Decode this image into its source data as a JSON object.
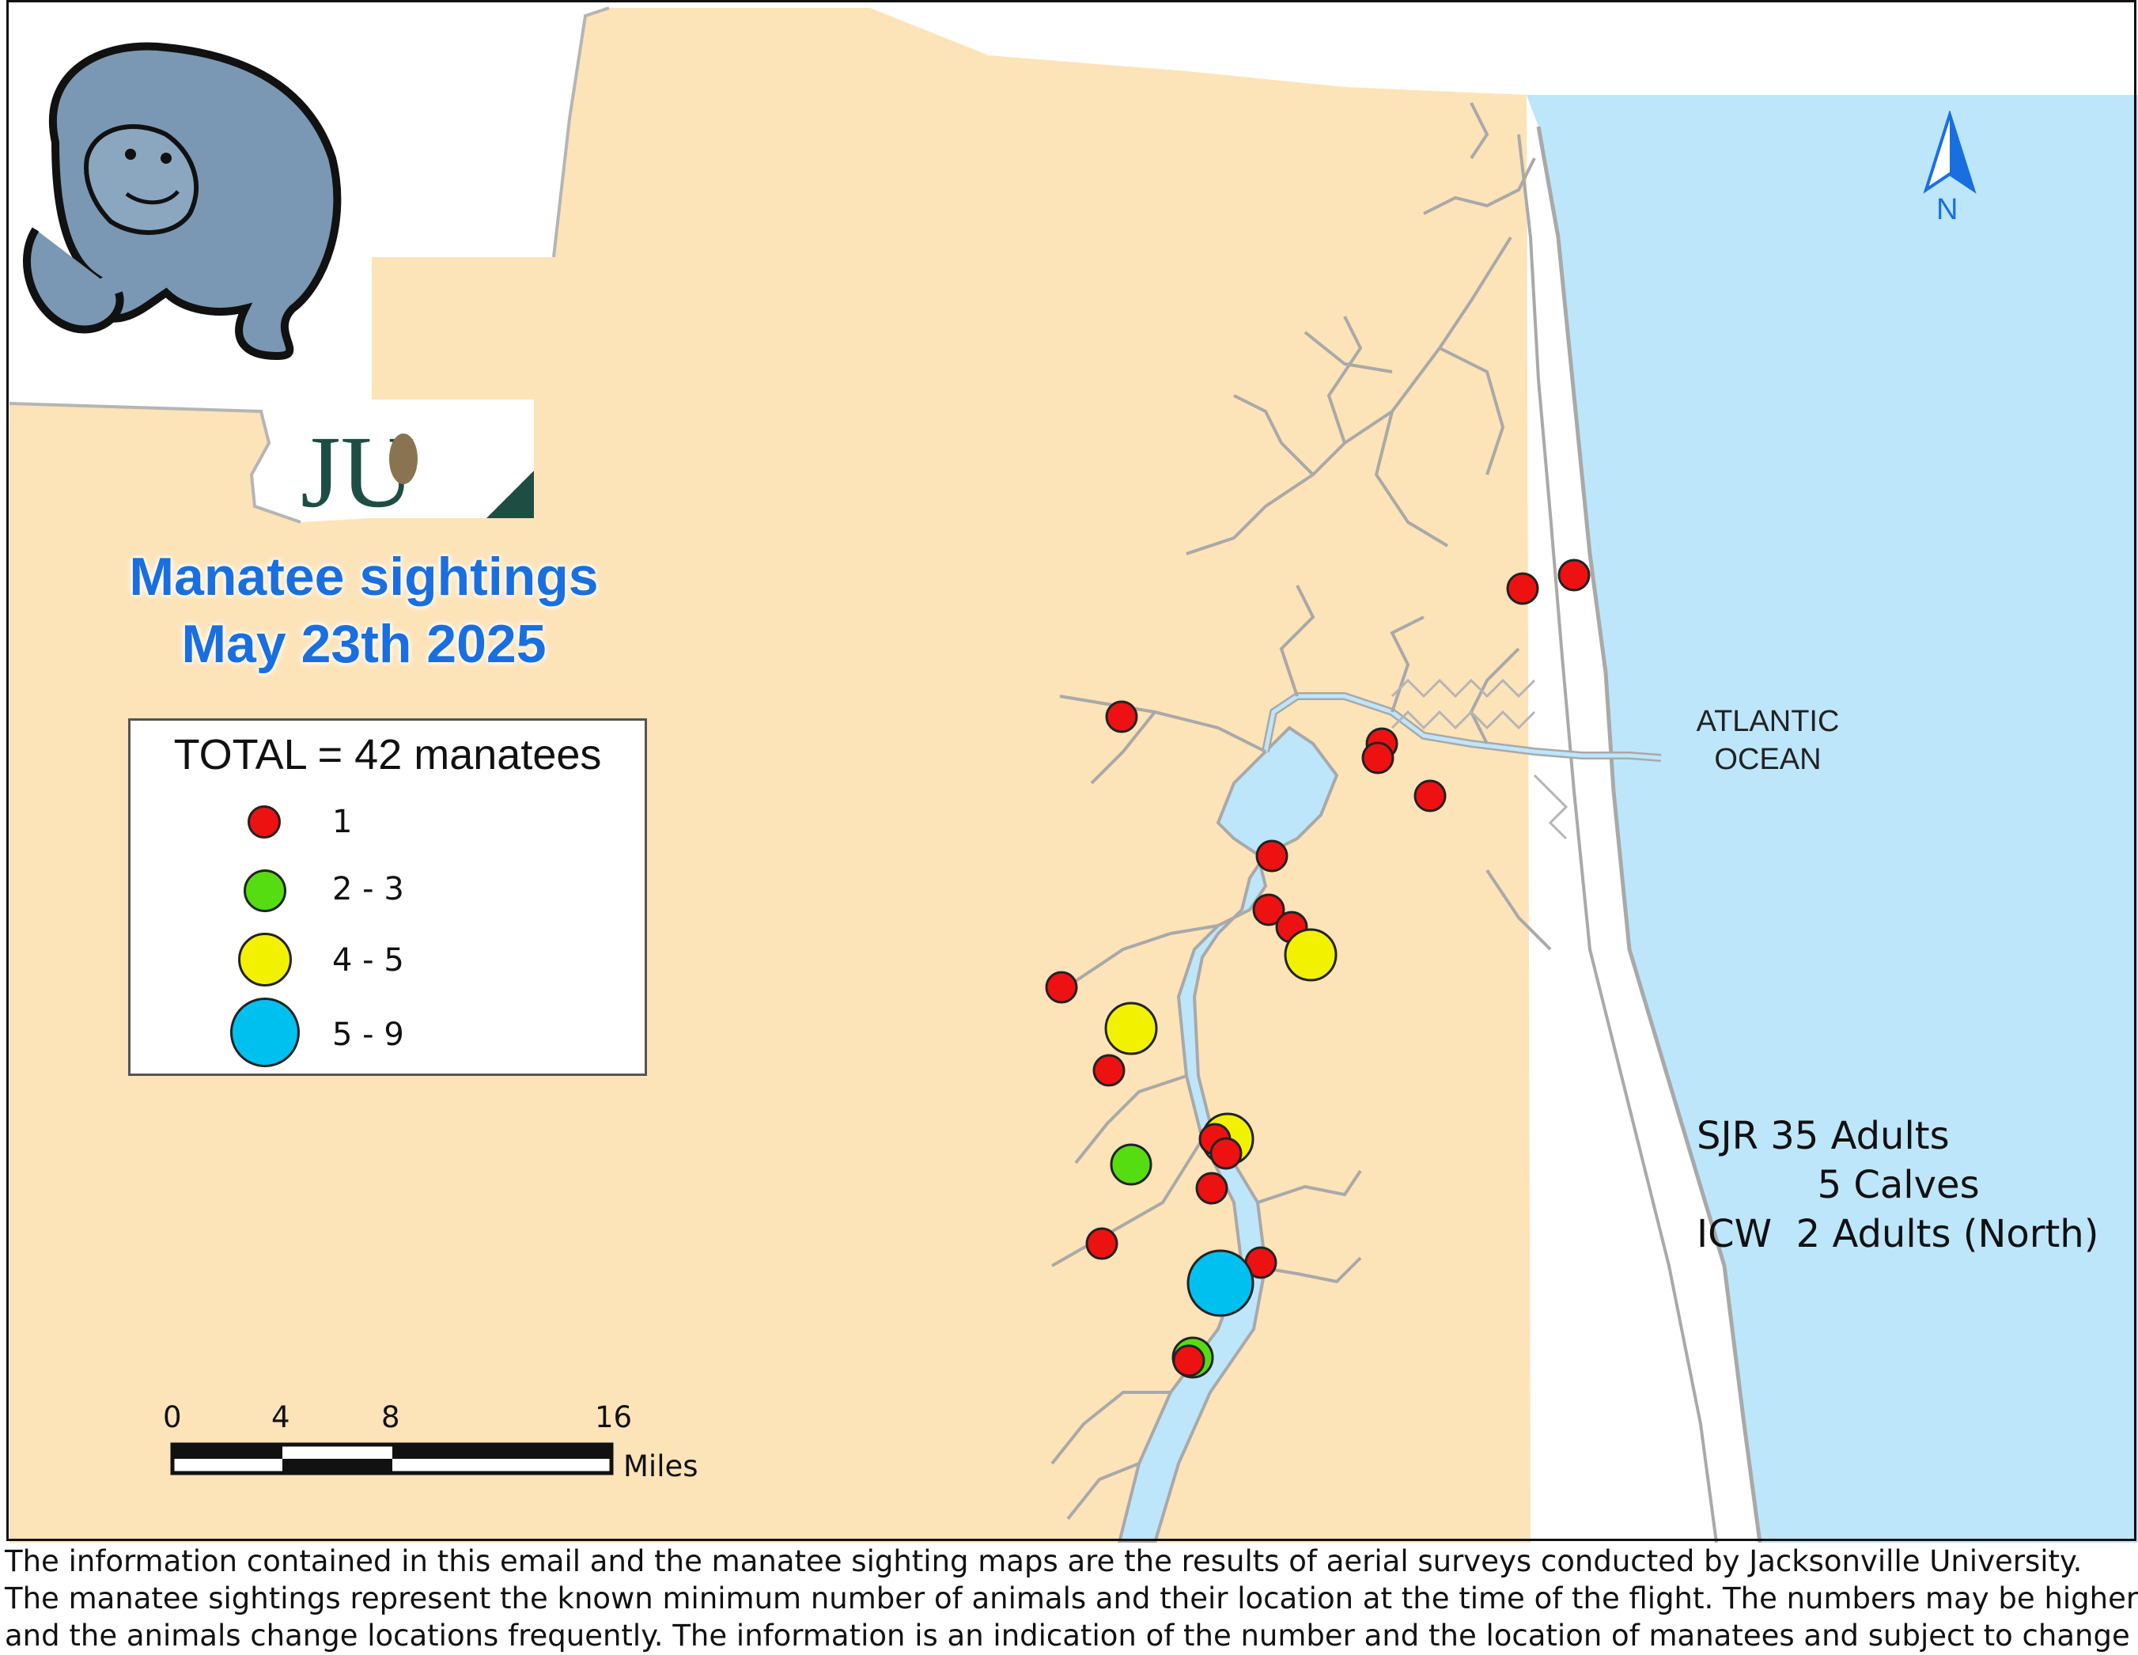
{
  "title": {
    "line1": "Manatee sightings",
    "line2": "May 23th 2025"
  },
  "legend": {
    "title": "TOTAL = 42 manatees",
    "classes": [
      {
        "label": "1",
        "color": "#ee1111"
      },
      {
        "label": "2 - 3",
        "color": "#55dd11"
      },
      {
        "label": "4 - 5",
        "color": "#f2f200"
      },
      {
        "label": "5 - 9",
        "color": "#00c0f0"
      }
    ]
  },
  "scale_bar": {
    "ticks": [
      "0",
      "4",
      "8",
      "16"
    ],
    "unit": "Miles"
  },
  "ocean_label": {
    "line1": "ATLANTIC",
    "line2": "OCEAN"
  },
  "north_arrow": {
    "label": "N"
  },
  "counts": {
    "line1": "SJR 35 Adults",
    "line2": "          5 Calves",
    "line3": "ICW  2 Adults (North)"
  },
  "logo": {
    "text": "JU"
  },
  "colors": {
    "land": "#fde3b8",
    "water": "#bde6fb",
    "river_outline": "#a9a9a9",
    "title": "#1a6fe0",
    "manatee_body": "#7a98b3"
  },
  "icons": [
    "manatee-icon",
    "ju-logo",
    "north-arrow-icon"
  ],
  "disclaimer": [
    "The information contained in this email and the manatee sighting maps are the results of aerial surveys conducted by Jacksonville University.",
    "The manatee sightings represent the known minimum number of animals and their location at the time of the flight. The numbers may be higher",
    "and the animals change locations frequently. The information is an indication of the number and the location of manatees and subject to change daily."
  ]
}
